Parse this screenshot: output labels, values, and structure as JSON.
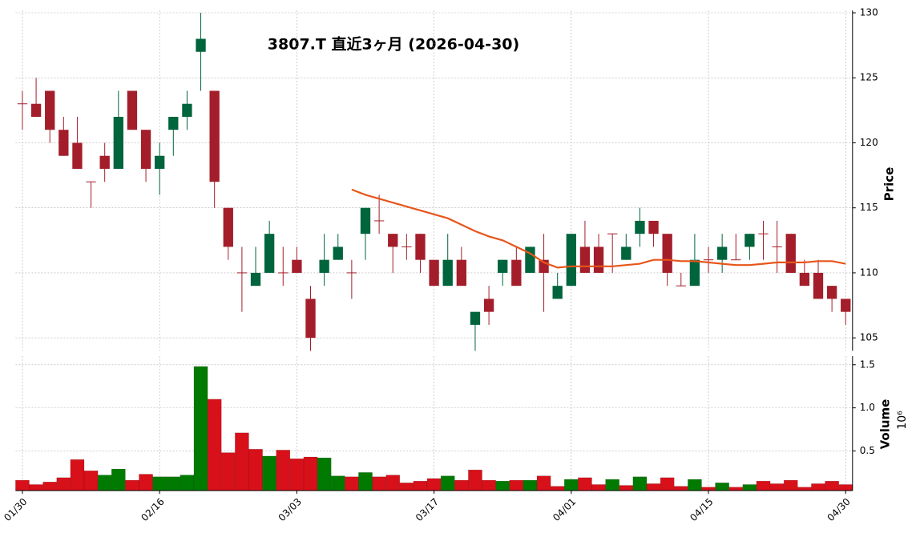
{
  "chart_data": {
    "type": "candlestick",
    "title": "3807.T  直近3ヶ月  (2026-04-30)",
    "categories": [
      "01/30",
      null,
      null,
      null,
      null,
      null,
      null,
      null,
      null,
      null,
      "02/16",
      null,
      null,
      null,
      null,
      null,
      null,
      null,
      null,
      null,
      "03/03",
      null,
      null,
      null,
      null,
      null,
      null,
      null,
      null,
      null,
      "03/17",
      null,
      null,
      null,
      null,
      null,
      null,
      null,
      null,
      null,
      "04/01",
      null,
      null,
      null,
      null,
      null,
      null,
      null,
      null,
      null,
      "04/15",
      null,
      null,
      null,
      null,
      null,
      null,
      null,
      null,
      null,
      "04/30"
    ],
    "open": [
      123,
      123,
      124,
      121,
      120,
      117,
      119,
      118,
      124,
      121,
      118,
      121,
      122,
      127,
      124,
      115,
      110,
      109,
      110,
      110,
      111,
      108,
      110,
      111,
      110,
      113,
      114,
      113,
      112,
      113,
      111,
      109,
      111,
      106,
      108,
      110,
      111,
      110,
      111,
      108,
      109,
      112,
      112,
      113,
      111,
      113,
      114,
      113,
      109,
      109,
      111,
      111,
      111,
      112,
      113,
      112,
      113,
      110,
      110,
      109,
      108
    ],
    "high": [
      124,
      125,
      124,
      122,
      122,
      117,
      120,
      124,
      124,
      121,
      120,
      122,
      124,
      130,
      124,
      115,
      112,
      112,
      114,
      112,
      112,
      109,
      113,
      113,
      111,
      115,
      116,
      113,
      113,
      113,
      111,
      113,
      112,
      107,
      109,
      111,
      112,
      112,
      113,
      110,
      113,
      114,
      113,
      113,
      113,
      115,
      114,
      113,
      110,
      113,
      112,
      113,
      113,
      113,
      114,
      114,
      113,
      111,
      111,
      109,
      108
    ],
    "low": [
      121,
      122,
      120,
      119,
      118,
      115,
      117,
      118,
      121,
      117,
      116,
      119,
      121,
      124,
      115,
      111,
      107,
      109,
      110,
      109,
      110,
      104,
      109,
      111,
      108,
      111,
      113,
      110,
      111,
      110,
      109,
      109,
      109,
      104,
      106,
      109,
      109,
      110,
      107,
      108,
      109,
      110,
      110,
      110,
      111,
      112,
      112,
      109,
      109,
      109,
      110,
      110,
      111,
      111,
      111,
      110,
      110,
      109,
      108,
      107,
      106
    ],
    "close": [
      123,
      122,
      121,
      119,
      118,
      117,
      118,
      122,
      121,
      118,
      119,
      122,
      123,
      128,
      117,
      112,
      110,
      110,
      113,
      110,
      110,
      105,
      111,
      112,
      110,
      115,
      114,
      112,
      112,
      111,
      109,
      111,
      109,
      107,
      107,
      111,
      109,
      112,
      110,
      109,
      113,
      110,
      110,
      113,
      112,
      114,
      113,
      110,
      109,
      111,
      111,
      112,
      111,
      113,
      113,
      112,
      110,
      109,
      108,
      108,
      107
    ],
    "up_color": "#00643c",
    "down_color": "#a31e2a",
    "ylim": [
      104,
      130
    ],
    "yticks": [
      105,
      110,
      115,
      120,
      125,
      130
    ],
    "ylabel": "Price",
    "grid": true,
    "ma": {
      "color": "#e8551a",
      "values": [
        null,
        null,
        null,
        null,
        null,
        null,
        null,
        null,
        null,
        null,
        null,
        null,
        null,
        null,
        null,
        null,
        null,
        null,
        null,
        null,
        null,
        null,
        null,
        null,
        116.4,
        116.0,
        115.7,
        115.4,
        115.1,
        114.8,
        114.5,
        114.2,
        113.7,
        113.2,
        112.8,
        112.5,
        112.0,
        111.5,
        110.8,
        110.4,
        110.5,
        110.5,
        110.5,
        110.5,
        110.6,
        110.7,
        111.0,
        111.0,
        110.9,
        110.9,
        110.8,
        110.7,
        110.6,
        110.6,
        110.7,
        110.8,
        110.8,
        110.8,
        110.9,
        110.9,
        110.7
      ]
    },
    "volume": {
      "label": "Volume",
      "offset_label": "10⁶",
      "up_color": "#007a00",
      "down_color": "#d7101a",
      "ylim": [
        0.04,
        1.6
      ],
      "yticks": [
        0.5,
        {
          "value": 1,
          "label": "1.0"
        },
        1.5
      ],
      "values": [
        0.16,
        0.11,
        0.14,
        0.19,
        0.4,
        0.27,
        0.22,
        0.29,
        0.16,
        0.23,
        0.2,
        0.2,
        0.22,
        1.48,
        1.1,
        0.48,
        0.71,
        0.52,
        0.44,
        0.51,
        0.41,
        0.43,
        0.42,
        0.21,
        0.2,
        0.25,
        0.2,
        0.22,
        0.13,
        0.15,
        0.18,
        0.21,
        0.16,
        0.28,
        0.16,
        0.15,
        0.16,
        0.16,
        0.21,
        0.09,
        0.17,
        0.19,
        0.11,
        0.17,
        0.1,
        0.2,
        0.12,
        0.19,
        0.09,
        0.17,
        0.08,
        0.13,
        0.08,
        0.11,
        0.15,
        0.12,
        0.16,
        0.08,
        0.12,
        0.15,
        0.11
      ]
    }
  }
}
